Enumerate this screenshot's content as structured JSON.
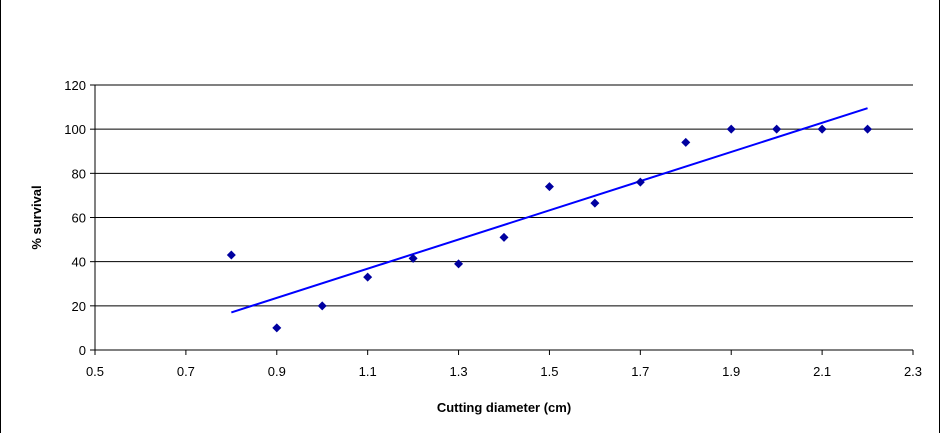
{
  "chart_data": {
    "type": "scatter",
    "title": "",
    "xlabel": "Cutting diameter (cm)",
    "ylabel": "% survival",
    "xlim": [
      0.5,
      2.3
    ],
    "ylim": [
      0,
      120
    ],
    "x_ticks": [
      "0.5",
      "0.7",
      "0.9",
      "1.1",
      "1.3",
      "1.5",
      "1.7",
      "1.9",
      "2.1",
      "2.3"
    ],
    "y_ticks": [
      "0",
      "20",
      "40",
      "60",
      "80",
      "100",
      "120"
    ],
    "grid": "horizontal",
    "legend": "none",
    "series": [
      {
        "marker": "diamond",
        "color": "#0000A0",
        "x": [
          0.8,
          0.9,
          1.0,
          1.1,
          1.2,
          1.3,
          1.4,
          1.5,
          1.6,
          1.7,
          1.8,
          1.9,
          2.0,
          2.1,
          2.2
        ],
        "y": [
          43,
          10,
          20,
          33,
          41.5,
          39,
          51,
          74,
          66.5,
          76,
          94,
          100,
          100,
          100,
          100
        ]
      }
    ],
    "trendline": {
      "type": "linear",
      "color": "#0000FF",
      "x": [
        0.8,
        2.2
      ],
      "y": [
        17,
        109.5
      ]
    }
  }
}
